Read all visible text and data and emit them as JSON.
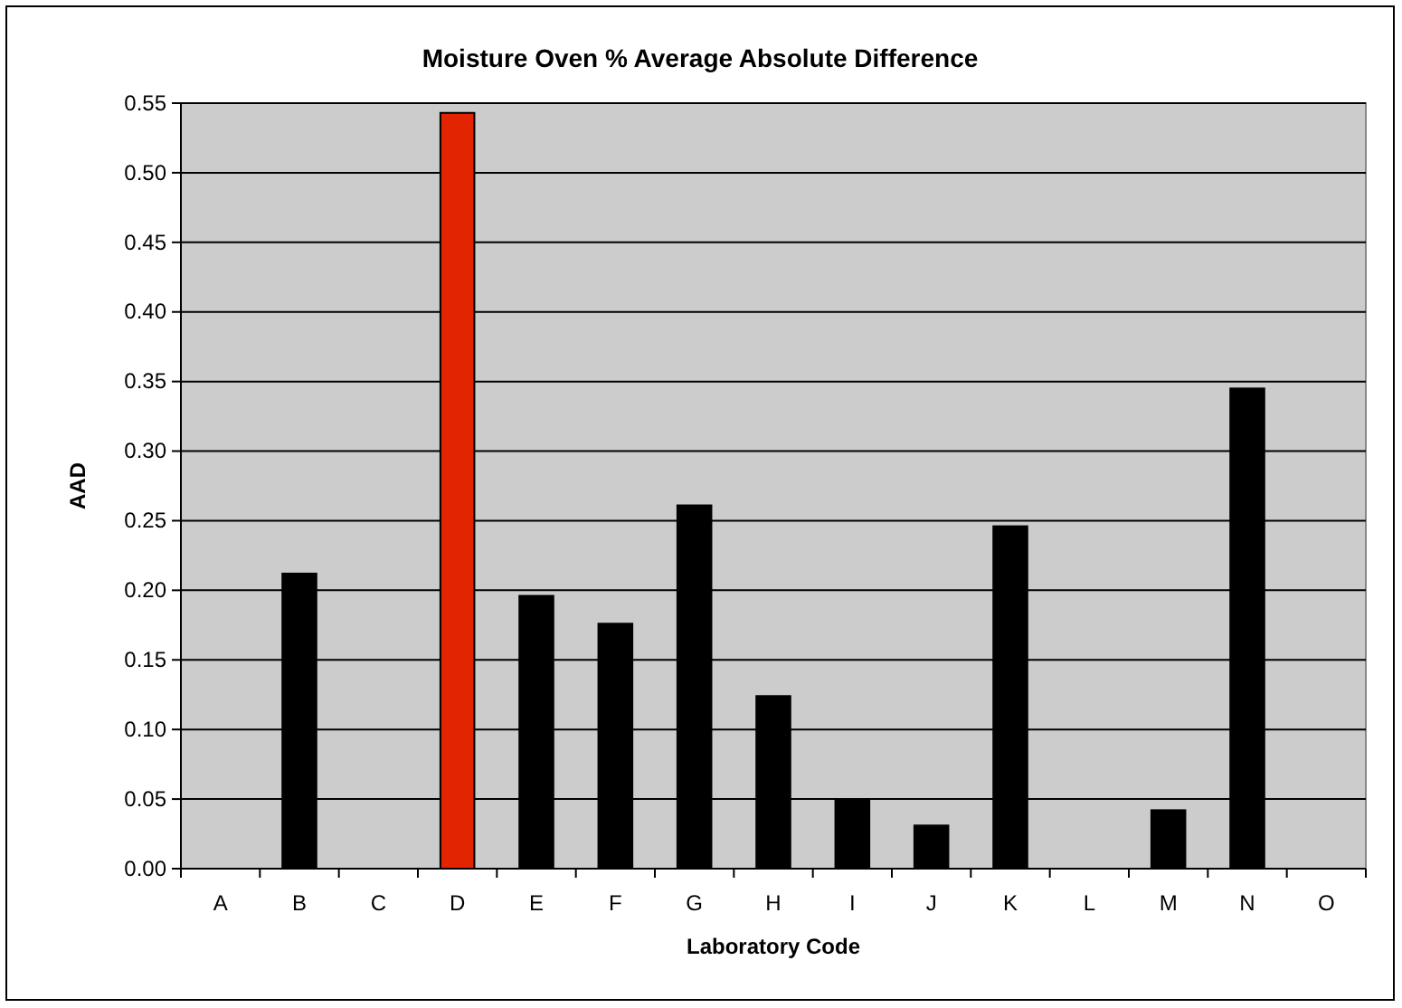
{
  "chart_data": {
    "type": "bar",
    "title": "Moisture Oven % Average Absolute Difference",
    "xlabel": "Laboratory Code",
    "ylabel": "AAD",
    "categories": [
      "A",
      "B",
      "C",
      "D",
      "E",
      "F",
      "G",
      "H",
      "I",
      "J",
      "K",
      "L",
      "M",
      "N",
      "O"
    ],
    "values": [
      null,
      0.212,
      null,
      0.543,
      0.196,
      0.176,
      0.261,
      0.124,
      0.05,
      0.031,
      0.246,
      null,
      0.042,
      0.345,
      null
    ],
    "colors": [
      null,
      "#000000",
      null,
      "#e32400",
      "#000000",
      "#000000",
      "#000000",
      "#000000",
      "#000000",
      "#000000",
      "#000000",
      null,
      "#000000",
      "#000000",
      null
    ],
    "ylim": [
      0,
      0.55
    ],
    "yticks": [
      {
        "value": 0,
        "label": "0.00"
      },
      {
        "value": 0.05,
        "label": "0.05"
      },
      {
        "value": 0.1,
        "label": "0.10"
      },
      {
        "value": 0.15,
        "label": "0.15"
      },
      {
        "value": 0.2,
        "label": "0.20"
      },
      {
        "value": 0.25,
        "label": "0.25"
      },
      {
        "value": 0.3,
        "label": "0.30"
      },
      {
        "value": 0.35,
        "label": "0.35"
      },
      {
        "value": 0.4,
        "label": "0.40"
      },
      {
        "value": 0.45,
        "label": "0.45"
      },
      {
        "value": 0.5,
        "label": "0.50"
      },
      {
        "value": 0.55,
        "label": "0.55"
      }
    ],
    "grid": "y"
  }
}
